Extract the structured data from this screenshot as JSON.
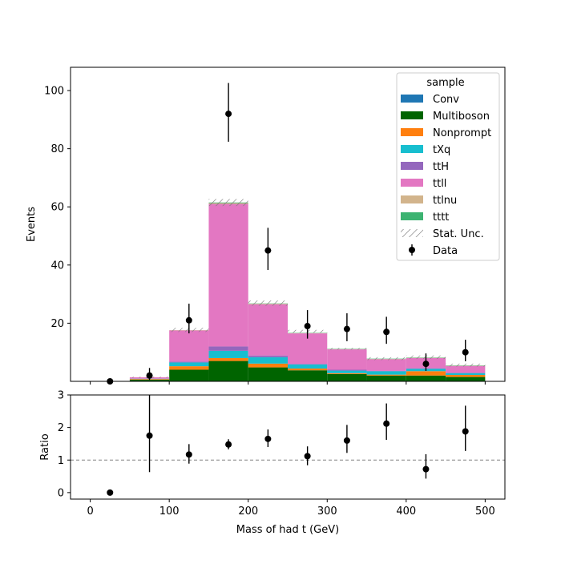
{
  "chart_data": [
    {
      "type": "bar",
      "stacked": true,
      "title": "",
      "xlabel": "",
      "ylabel": "Events",
      "xlim": [
        -25,
        525
      ],
      "ylim": [
        0,
        108
      ],
      "yticks": [
        20,
        40,
        60,
        80,
        100
      ],
      "bin_edges": [
        0,
        50,
        100,
        150,
        200,
        250,
        300,
        350,
        400,
        450,
        500
      ],
      "series": [
        {
          "name": "Conv",
          "color": "#1f77b4",
          "values": [
            0,
            0,
            0,
            0,
            0,
            0,
            0,
            0,
            0,
            0
          ]
        },
        {
          "name": "Multiboson",
          "color": "#006400",
          "values": [
            0,
            0.6,
            4.0,
            7.0,
            4.8,
            3.8,
            2.5,
            2.0,
            2.0,
            1.5
          ]
        },
        {
          "name": "Nonprompt",
          "color": "#ff7f0e",
          "values": [
            0,
            0.2,
            1.2,
            1.0,
            1.3,
            0.6,
            0.3,
            0.3,
            1.5,
            0.7
          ]
        },
        {
          "name": "tXq",
          "color": "#17becf",
          "values": [
            0,
            0.1,
            1.3,
            2.5,
            2.2,
            1.4,
            0.9,
            1.2,
            0.8,
            0.6
          ]
        },
        {
          "name": "ttH",
          "color": "#9467bd",
          "values": [
            0,
            0,
            0.3,
            1.5,
            0.6,
            0.2,
            0.3,
            0.1,
            0.2,
            0.2
          ]
        },
        {
          "name": "ttll",
          "color": "#e377c2",
          "values": [
            0,
            0.5,
            10.7,
            49.0,
            17.6,
            10.5,
            7.0,
            4.0,
            3.5,
            2.3
          ]
        },
        {
          "name": "ttlnu",
          "color": "#d2b48c",
          "values": [
            0,
            0,
            0.1,
            0.3,
            0.2,
            0.1,
            0.1,
            0.1,
            0.1,
            0.1
          ]
        },
        {
          "name": "tttt",
          "color": "#3cb371",
          "values": [
            0,
            0,
            0,
            0.2,
            0.1,
            0.1,
            0.1,
            0.1,
            0.1,
            0.1
          ]
        }
      ],
      "stat_unc": {
        "name": "Stat. Unc.",
        "up": [
          0,
          1.6,
          18.4,
          62.7,
          27.8,
          17.7,
          11.5,
          8.3,
          8.9,
          6.1
        ],
        "down": [
          0,
          1.2,
          17.0,
          60.3,
          26.0,
          16.7,
          10.9,
          7.3,
          7.7,
          5.1
        ]
      },
      "data": {
        "name": "Data",
        "x": [
          25,
          75,
          125,
          175,
          225,
          275,
          325,
          375,
          425,
          475
        ],
        "y": [
          0,
          2,
          21,
          92,
          45,
          19,
          18,
          17,
          6,
          10
        ],
        "yerr_low": [
          0,
          1.5,
          4.5,
          9.6,
          6.7,
          4.3,
          4.2,
          4.1,
          2.4,
          3.1
        ],
        "yerr_high": [
          0,
          2.6,
          5.7,
          10.6,
          7.8,
          5.5,
          5.4,
          5.2,
          3.6,
          4.3
        ]
      },
      "legend": {
        "title": "sample",
        "placement": "top-right"
      }
    },
    {
      "type": "scatter",
      "title": "",
      "xlabel": "Mass of had t (GeV)",
      "ylabel": "Ratio",
      "xlim": [
        -25,
        525
      ],
      "ylim": [
        -0.2,
        3
      ],
      "xticks": [
        0,
        100,
        200,
        300,
        400,
        500
      ],
      "yticks": [
        0,
        1,
        2,
        3
      ],
      "reference_line": 1,
      "x": [
        25,
        75,
        125,
        175,
        225,
        275,
        325,
        375,
        425,
        475
      ],
      "y": [
        0,
        1.75,
        1.17,
        1.48,
        1.65,
        1.12,
        1.6,
        2.12,
        0.72,
        1.88
      ],
      "yerr_low": [
        0,
        1.12,
        0.28,
        0.15,
        0.25,
        0.28,
        0.38,
        0.5,
        0.29,
        0.6
      ],
      "yerr_high": [
        0,
        1.45,
        0.32,
        0.16,
        0.29,
        0.3,
        0.48,
        0.62,
        0.46,
        0.79
      ]
    }
  ]
}
